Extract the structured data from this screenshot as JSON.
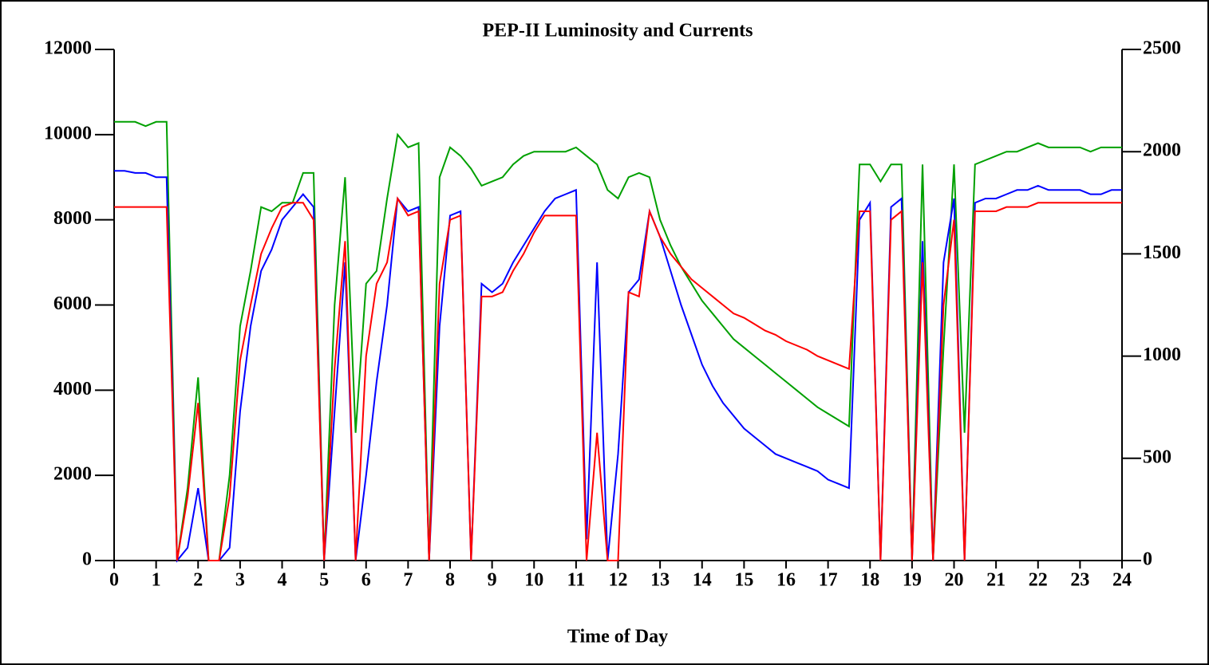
{
  "chart_data": {
    "type": "line",
    "title": "PEP-II Luminosity and Currents",
    "xlabel": "Time of Day",
    "x": [
      0,
      0.25,
      0.5,
      0.75,
      1,
      1.25,
      1.5,
      1.75,
      2,
      2.25,
      2.5,
      2.75,
      3,
      3.25,
      3.5,
      3.75,
      4,
      4.25,
      4.5,
      4.75,
      5,
      5.25,
      5.5,
      5.75,
      6,
      6.25,
      6.5,
      6.75,
      7,
      7.25,
      7.5,
      7.75,
      8,
      8.25,
      8.5,
      8.75,
      9,
      9.25,
      9.5,
      9.75,
      10,
      10.25,
      10.5,
      10.75,
      11,
      11.25,
      11.5,
      11.75,
      12,
      12.25,
      12.5,
      12.75,
      13,
      13.25,
      13.5,
      13.75,
      14,
      14.25,
      14.5,
      14.75,
      15,
      15.25,
      15.5,
      15.75,
      16,
      16.25,
      16.5,
      16.75,
      17,
      17.25,
      17.5,
      17.75,
      18,
      18.25,
      18.5,
      18.75,
      19,
      19.25,
      19.5,
      19.75,
      20,
      20.25,
      20.5,
      20.75,
      21,
      21.25,
      21.5,
      21.75,
      22,
      22.25,
      22.5,
      22.75,
      23,
      23.25,
      23.5,
      23.75,
      24
    ],
    "series": [
      {
        "color": "#00a000",
        "values": [
          10300,
          10300,
          10300,
          10200,
          10300,
          10300,
          0,
          1700,
          4300,
          0,
          0,
          2000,
          5500,
          6800,
          8300,
          8200,
          8400,
          8400,
          9100,
          9100,
          0,
          6000,
          9000,
          3000,
          6500,
          6800,
          8500,
          10000,
          9700,
          9800,
          0,
          9000,
          9700,
          9500,
          9200,
          8800,
          8900,
          9000,
          9300,
          9500,
          9600,
          9600,
          9600,
          9600,
          9700,
          9500,
          9300,
          8700,
          8500,
          9000,
          9100,
          9000,
          8000,
          7400,
          6900,
          6500,
          6100,
          5800,
          5500,
          5200,
          5000,
          4800,
          4600,
          4400,
          4200,
          4000,
          3800,
          3600,
          3450,
          3300,
          3150,
          9300,
          9300,
          8900,
          9300,
          9300,
          0,
          9300,
          0,
          5000,
          9300,
          3000,
          9300,
          9400,
          9500,
          9600,
          9600,
          9700,
          9800,
          9700,
          9700,
          9700,
          9700,
          9600,
          9700,
          9700,
          9700
        ]
      },
      {
        "color": "#0000ff",
        "values": [
          9150,
          9150,
          9100,
          9100,
          9000,
          9000,
          0,
          300,
          1700,
          0,
          0,
          300,
          3500,
          5500,
          6800,
          7300,
          8000,
          8300,
          8600,
          8300,
          0,
          3500,
          7000,
          0,
          2000,
          4200,
          6000,
          8500,
          8200,
          8300,
          0,
          5500,
          8100,
          8200,
          0,
          6500,
          6300,
          6500,
          7000,
          7400,
          7800,
          8200,
          8500,
          8600,
          8700,
          500,
          7000,
          0,
          2500,
          6300,
          6600,
          8200,
          7600,
          6800,
          6000,
          5300,
          4600,
          4100,
          3700,
          3400,
          3100,
          2900,
          2700,
          2500,
          2400,
          2300,
          2200,
          2100,
          1900,
          1800,
          1700,
          8000,
          8400,
          0,
          8300,
          8500,
          0,
          7500,
          0,
          7000,
          8500,
          0,
          8400,
          8500,
          8500,
          8600,
          8700,
          8700,
          8800,
          8700,
          8700,
          8700,
          8700,
          8600,
          8600,
          8700,
          8700
        ]
      },
      {
        "color": "#ff0000",
        "values": [
          8300,
          8300,
          8300,
          8300,
          8300,
          8300,
          0,
          1500,
          3700,
          0,
          0,
          1500,
          4700,
          6000,
          7200,
          7800,
          8300,
          8400,
          8400,
          8000,
          0,
          4500,
          7500,
          0,
          4800,
          6500,
          7000,
          8500,
          8100,
          8200,
          0,
          6500,
          8000,
          8100,
          0,
          6200,
          6200,
          6300,
          6800,
          7200,
          7700,
          8100,
          8100,
          8100,
          8100,
          0,
          3000,
          0,
          0,
          6300,
          6200,
          8200,
          7600,
          7200,
          6900,
          6600,
          6400,
          6200,
          6000,
          5800,
          5700,
          5550,
          5400,
          5300,
          5150,
          5050,
          4950,
          4800,
          4700,
          4600,
          4500,
          8200,
          8200,
          0,
          8000,
          8200,
          0,
          7000,
          0,
          6000,
          8000,
          0,
          8200,
          8200,
          8200,
          8300,
          8300,
          8300,
          8400,
          8400,
          8400,
          8400,
          8400,
          8400,
          8400,
          8400,
          8400
        ]
      }
    ],
    "xlim": [
      0,
      24
    ],
    "xticks": [
      0,
      1,
      2,
      3,
      4,
      5,
      6,
      7,
      8,
      9,
      10,
      11,
      12,
      13,
      14,
      15,
      16,
      17,
      18,
      19,
      20,
      21,
      22,
      23,
      24
    ],
    "ylim": [
      0,
      12000
    ],
    "yticks": [
      0,
      2000,
      4000,
      6000,
      8000,
      10000,
      12000
    ],
    "y2lim": [
      0,
      2500
    ],
    "y2ticks": [
      0,
      500,
      1000,
      1500,
      2000,
      2500
    ]
  }
}
